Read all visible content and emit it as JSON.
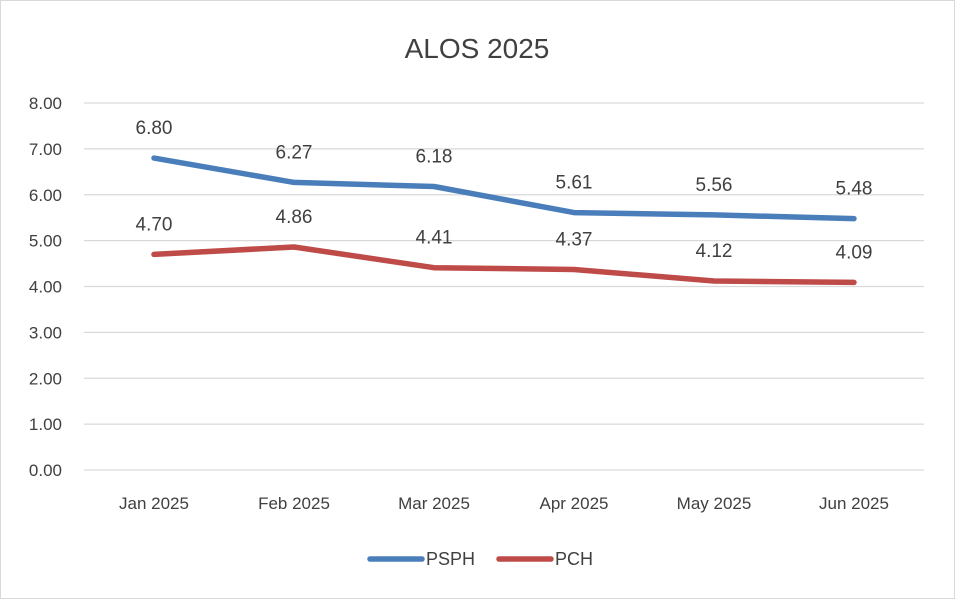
{
  "chart_data": {
    "type": "line",
    "title": "ALOS 2025",
    "xlabel": "",
    "ylabel": "",
    "categories": [
      "Jan 2025",
      "Feb 2025",
      "Mar 2025",
      "Apr 2025",
      "May 2025",
      "Jun 2025"
    ],
    "ylim": [
      0,
      8
    ],
    "yticks": [
      "0.00",
      "1.00",
      "2.00",
      "3.00",
      "4.00",
      "5.00",
      "6.00",
      "7.00",
      "8.00"
    ],
    "grid": true,
    "legend_position": "bottom",
    "series": [
      {
        "name": "PSPH",
        "color": "#4a7ebb",
        "values": [
          6.8,
          6.27,
          6.18,
          5.61,
          5.56,
          5.48
        ],
        "labels": [
          "6.80",
          "6.27",
          "6.18",
          "5.61",
          "5.56",
          "5.48"
        ]
      },
      {
        "name": "PCH",
        "color": "#be4b48",
        "values": [
          4.7,
          4.86,
          4.41,
          4.37,
          4.12,
          4.09
        ],
        "labels": [
          "4.70",
          "4.86",
          "4.41",
          "4.37",
          "4.12",
          "4.09"
        ]
      }
    ]
  }
}
